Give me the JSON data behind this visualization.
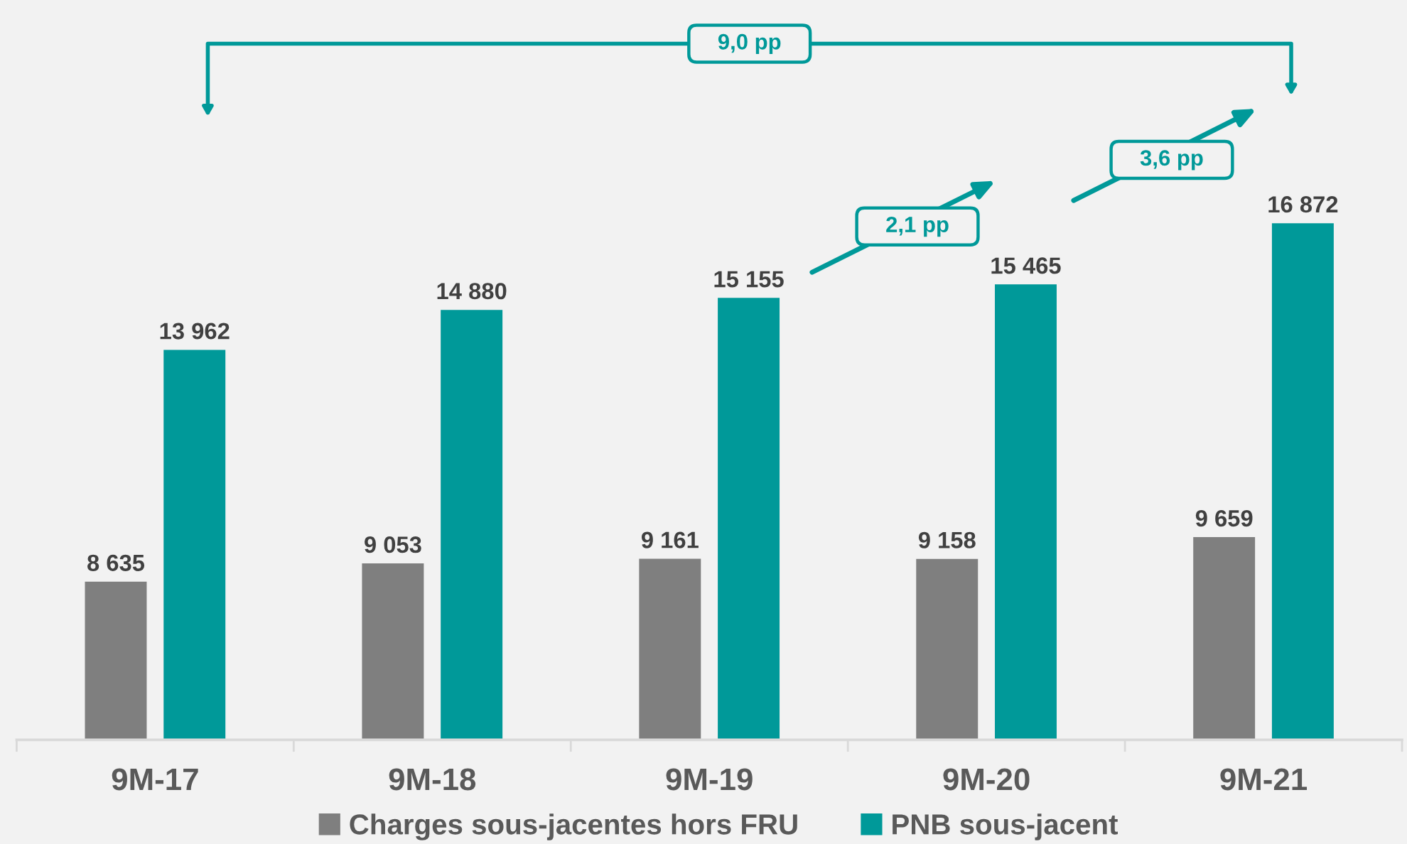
{
  "chart_data": {
    "type": "bar",
    "categories": [
      "9M-17",
      "9M-18",
      "9M-19",
      "9M-20",
      "9M-21"
    ],
    "series": [
      {
        "name": "Charges sous-jacentes hors FRU",
        "color": "#7f7f7f",
        "values": [
          8635,
          9053,
          9161,
          9158,
          9659
        ],
        "value_labels": [
          "8 635",
          "9 053",
          "9 161",
          "9 158",
          "9 659"
        ]
      },
      {
        "name": "PNB sous-jacent",
        "color": "#009999",
        "values": [
          13962,
          14880,
          15155,
          15465,
          16872
        ],
        "value_labels": [
          "13 962",
          "14 880",
          "15 155",
          "15 465",
          "16 872"
        ]
      }
    ],
    "ylim": [
      5000,
      22000
    ],
    "tick_labels": "x",
    "legend": "bottom",
    "annotations": [
      "9,0 pp",
      "2,1 pp",
      "3,6 pp"
    ]
  }
}
